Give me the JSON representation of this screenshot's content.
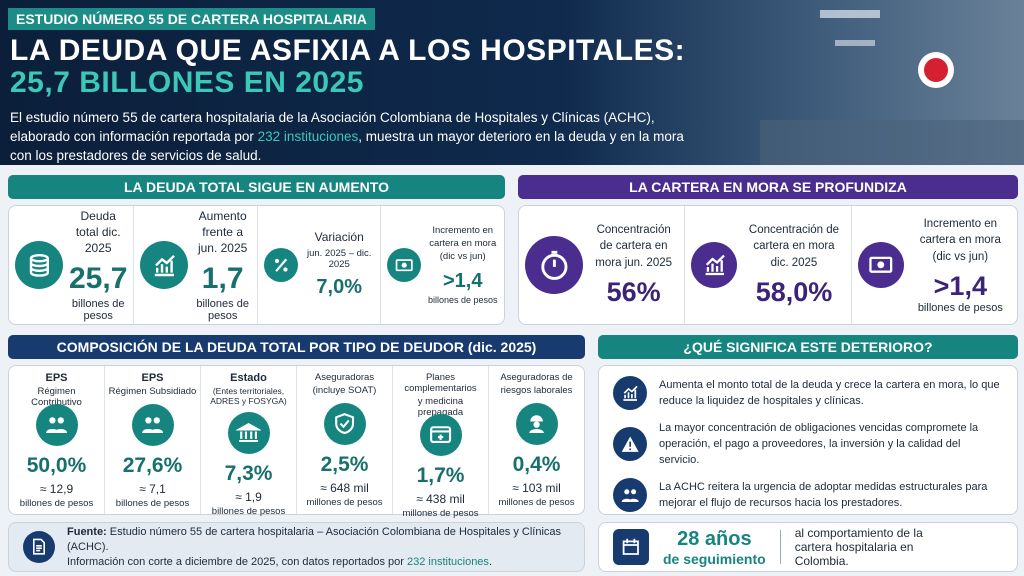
{
  "header": {
    "tag": "ESTUDIO NÚMERO 55 DE CARTERA HOSPITALARIA",
    "title_line1": "LA DEUDA QUE ASFIXIA A LOS HOSPITALES:",
    "title_line2": "25,7 BILLONES EN 2025",
    "intro": {
      "before": "El estudio número 55 de cartera hospitalaria de la Asociación Colombiana de Hospitales y Clínicas (ACHC), elaborado con información reportada por ",
      "highlight": "232 instituciones",
      "after": ", muestra un mayor deterioro en la deuda y en la mora con los prestadores de servicios de salud."
    }
  },
  "debt": {
    "title": "LA DEUDA TOTAL SIGUE EN AUMENTO",
    "items": [
      {
        "label": "Deuda total dic. 2025",
        "value": "25,7",
        "unit": "billones de pesos"
      },
      {
        "label": "Aumento frente a jun. 2025",
        "value": "1,7",
        "unit": "billones de pesos"
      },
      {
        "label": "Variación",
        "sublabel": "jun. 2025 – dic. 2025",
        "value": "7,0%"
      },
      {
        "label": "Incremento en cartera en mora (dic vs jun)",
        "value": ">1,4",
        "unit": "billones de pesos"
      }
    ]
  },
  "overdue": {
    "title": "LA CARTERA EN MORA SE PROFUNDIZA",
    "items": [
      {
        "label": "Concentración de cartera en mora jun. 2025",
        "value": "56%"
      },
      {
        "label": "Concentración de cartera en mora dic. 2025",
        "value": "58,0%"
      },
      {
        "label": "Incremento en cartera en mora (dic vs jun)",
        "value": ">1,4",
        "unit": "billones de pesos"
      }
    ]
  },
  "composition": {
    "title": "COMPOSICIÓN DE LA DEUDA TOTAL POR TIPO DE DEUDOR (dic. 2025)",
    "items": [
      {
        "label": "EPS",
        "sublabel": "Régimen Contributivo",
        "percent": "50,0%",
        "amount": "≈ 12,9",
        "unit": "billones de pesos"
      },
      {
        "label": "EPS",
        "sublabel": "Régimen Subsidiado",
        "percent": "27,6%",
        "amount": "≈ 7,1",
        "unit": "billones de pesos"
      },
      {
        "label": "Estado",
        "sublabel": "(Entes territoriales, ADRES y FOSYGA)",
        "percent": "7,3%",
        "amount": "≈ 1,9",
        "unit": "billones de pesos"
      },
      {
        "label": "Aseguradoras",
        "sublabel": "(incluye SOAT)",
        "percent": "2,5%",
        "amount": "≈ 648 mil",
        "unit": "millones de pesos"
      },
      {
        "label": "Planes complementarios",
        "sublabel": "y medicina prepagada",
        "percent": "1,7%",
        "amount": "≈ 438 mil",
        "unit": "millones de pesos"
      },
      {
        "label": "Aseguradoras de",
        "sublabel": "riesgos laborales",
        "percent": "0,4%",
        "amount": "≈ 103 mil",
        "unit": "millones de pesos"
      }
    ]
  },
  "meaning": {
    "title": "¿QUÉ SIGNIFICA ESTE DETERIORO?",
    "points": [
      "Aumenta el monto total de la deuda y crece la cartera en mora, lo que reduce la liquidez de hospitales y clínicas.",
      "La mayor concentración de obligaciones vencidas compromete la operación, el pago a proveedores, la inversión y la calidad del servicio.",
      "La ACHC reitera la urgencia de adoptar medidas estructurales para mejorar el flujo de recursos hacia los prestadores."
    ]
  },
  "source": {
    "label": "Fuente:",
    "text": "Estudio número 55 de cartera hospitalaria – Asociación Colombiana de Hospitales y Clínicas (ACHC).",
    "line2": "Información con corte a diciembre de 2025, con datos reportados por ",
    "highlight": "232 instituciones",
    "end": "."
  },
  "tracking": {
    "number": "28 años",
    "subtitle": "de seguimiento",
    "text": "al comportamiento de la cartera hospitalaria en Colombia."
  }
}
